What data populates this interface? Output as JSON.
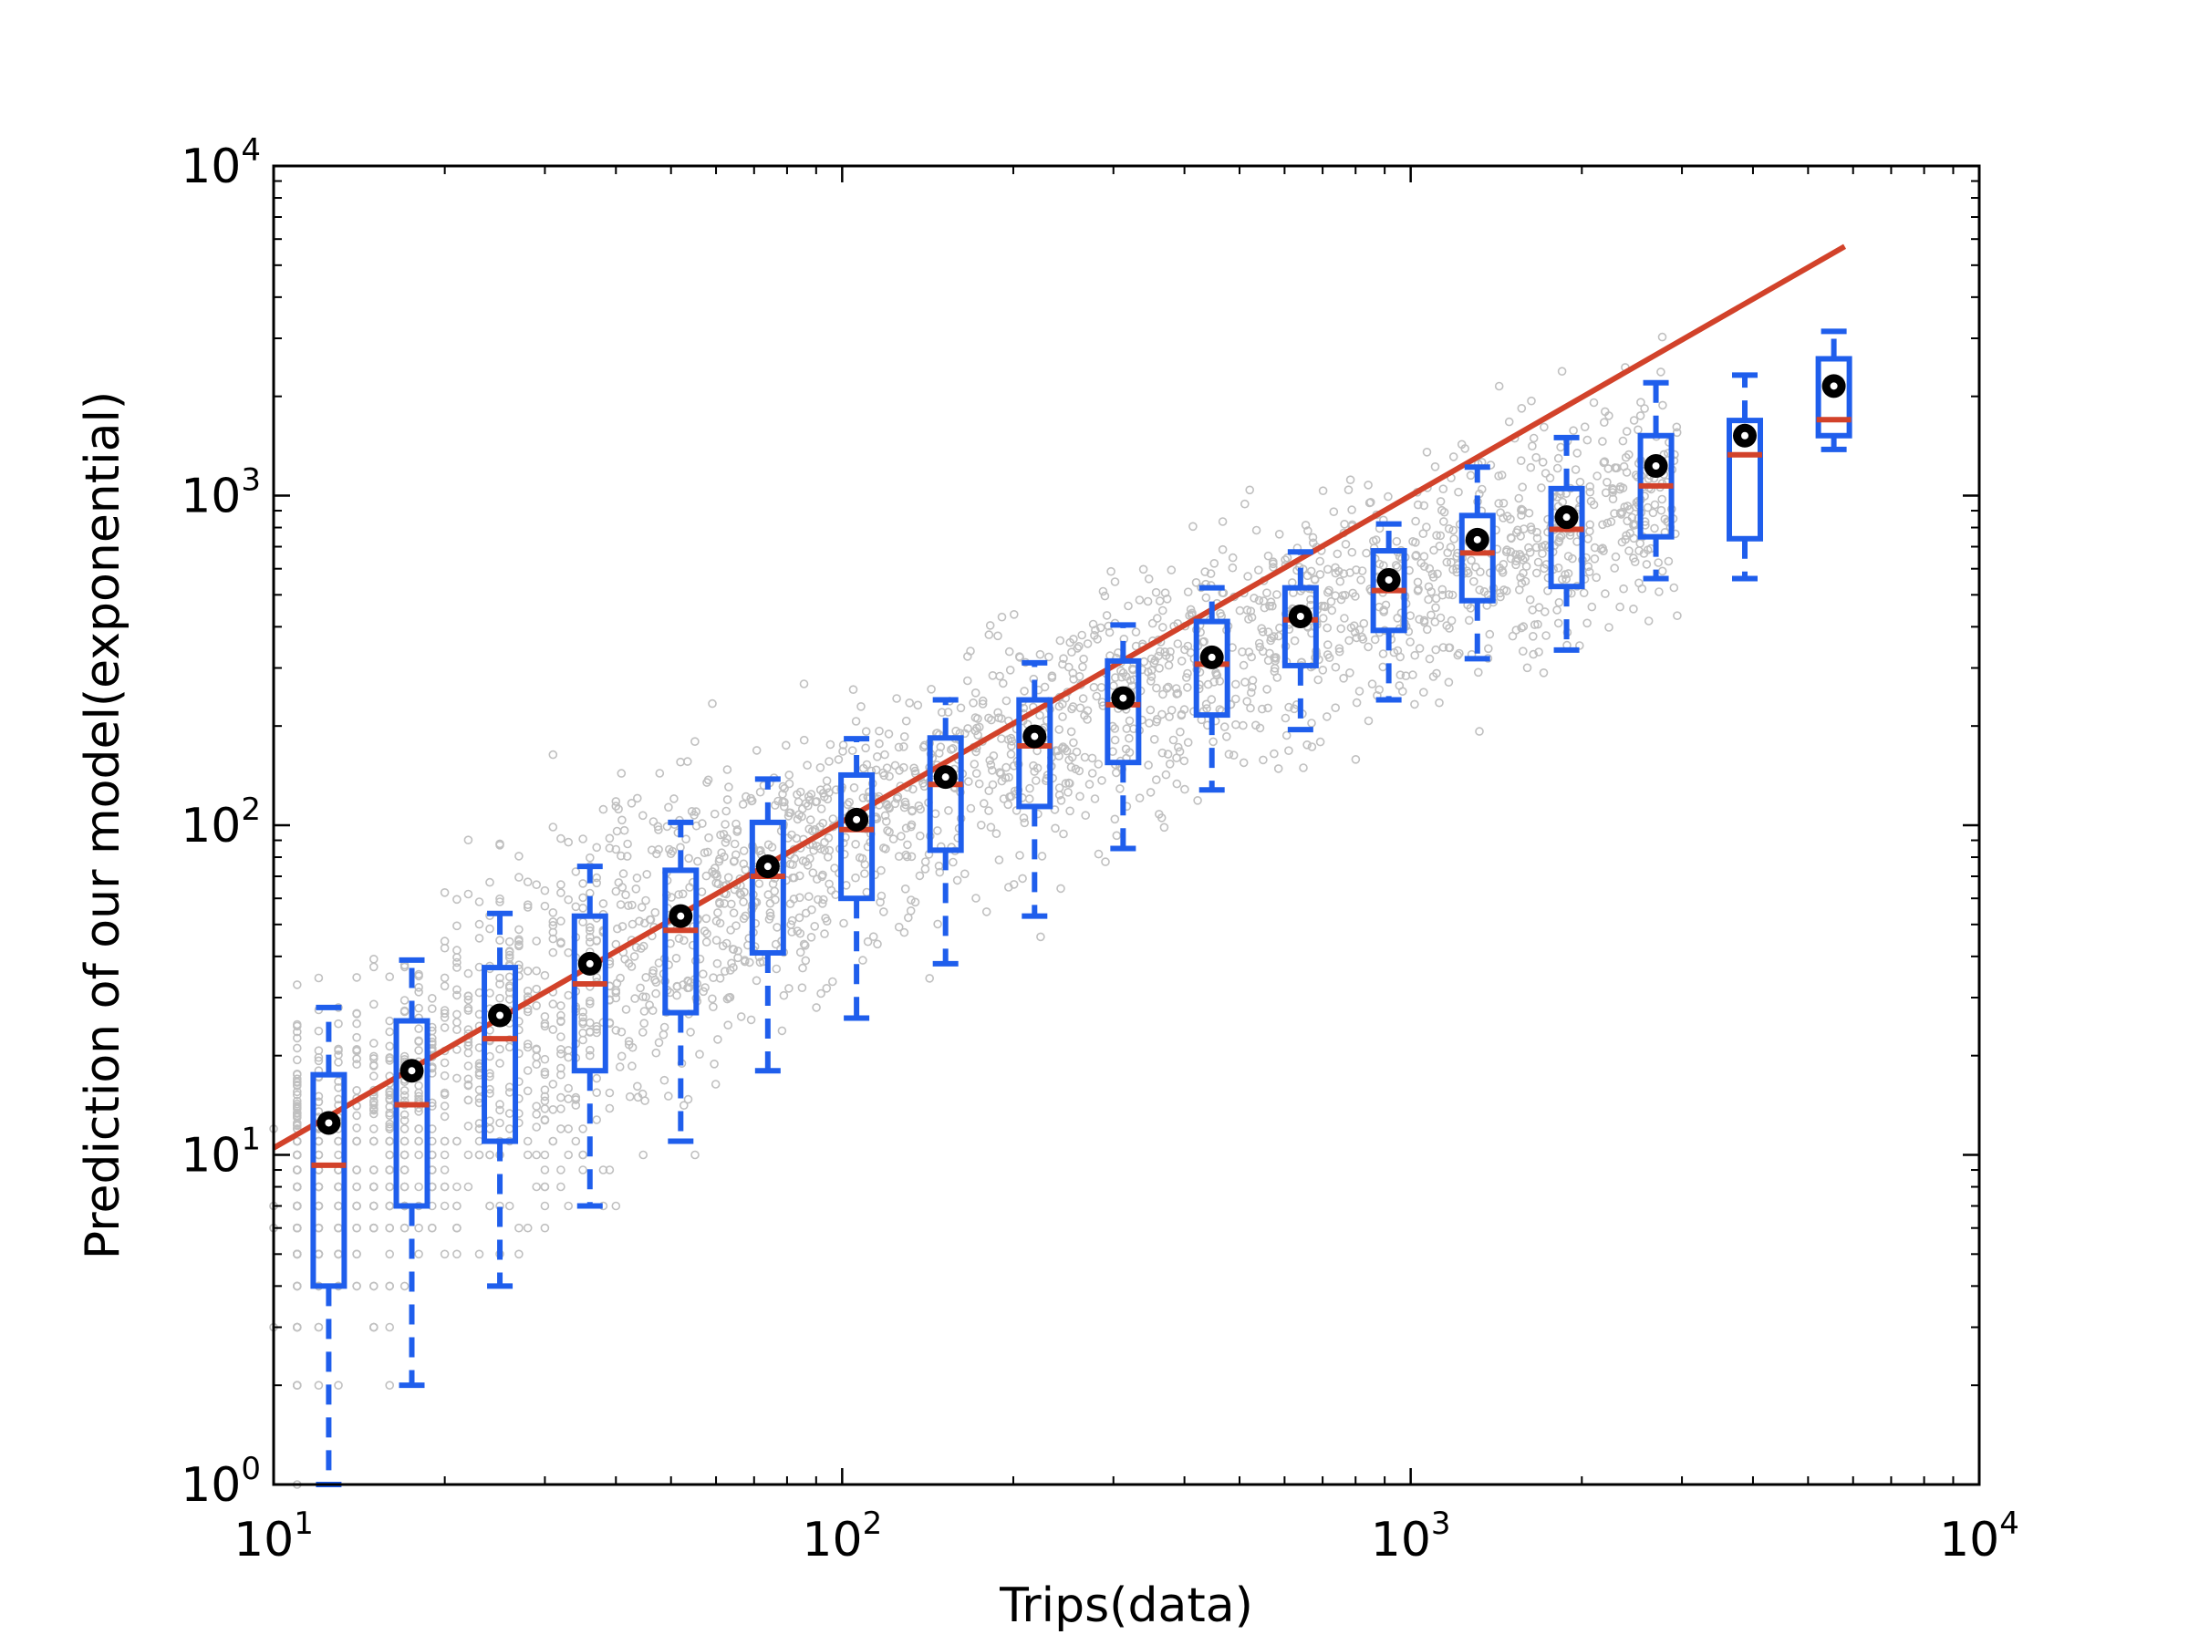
{
  "chart_data": {
    "type": "scatter",
    "title": "",
    "xlabel": "Trips(data)",
    "ylabel": "Prediction of our model(exponential)",
    "xscale": "log",
    "yscale": "log",
    "xlim": [
      10,
      10000
    ],
    "ylim": [
      1,
      10000
    ],
    "grid": false,
    "legend": "none",
    "x_ticks": [
      {
        "value": 10,
        "base": "10",
        "exp": "1"
      },
      {
        "value": 100,
        "base": "10",
        "exp": "2"
      },
      {
        "value": 1000,
        "base": "10",
        "exp": "3"
      },
      {
        "value": 10000,
        "base": "10",
        "exp": "4"
      }
    ],
    "y_ticks": [
      {
        "value": 1,
        "base": "10",
        "exp": "0"
      },
      {
        "value": 10,
        "base": "10",
        "exp": "1"
      },
      {
        "value": 100,
        "base": "10",
        "exp": "2"
      },
      {
        "value": 1000,
        "base": "10",
        "exp": "3"
      },
      {
        "value": 10000,
        "base": "10",
        "exp": "4"
      }
    ],
    "colors": {
      "scatter": "#c0c0c0",
      "box": "#1f5eec",
      "median": "#d2422a",
      "fit_line": "#d2422a",
      "mean_marker": "#000000"
    },
    "fit_line": {
      "x": [
        10,
        5800
      ],
      "y": [
        10.5,
        5700
      ]
    },
    "boxes": [
      {
        "x": 12.5,
        "q1": 4.0,
        "median": 9.3,
        "q3": 17.5,
        "whisker_low": 1.0,
        "whisker_high": 28,
        "mean": 12.5
      },
      {
        "x": 17.5,
        "q1": 7.0,
        "median": 14.2,
        "q3": 25.5,
        "whisker_low": 2.0,
        "whisker_high": 39,
        "mean": 18.0
      },
      {
        "x": 25.0,
        "q1": 11.0,
        "median": 22.5,
        "q3": 37,
        "whisker_low": 4.0,
        "whisker_high": 54,
        "mean": 26.5
      },
      {
        "x": 36.0,
        "q1": 18.0,
        "median": 33,
        "q3": 53,
        "whisker_low": 7.0,
        "whisker_high": 75,
        "mean": 38
      },
      {
        "x": 52.0,
        "q1": 27,
        "median": 48,
        "q3": 73,
        "whisker_low": 11.0,
        "whisker_high": 102,
        "mean": 53
      },
      {
        "x": 74.0,
        "q1": 41,
        "median": 70,
        "q3": 102,
        "whisker_low": 18.0,
        "whisker_high": 138,
        "mean": 75
      },
      {
        "x": 106.0,
        "q1": 60,
        "median": 97,
        "q3": 142,
        "whisker_low": 26,
        "whisker_high": 183,
        "mean": 104
      },
      {
        "x": 152.0,
        "q1": 84,
        "median": 133,
        "q3": 184,
        "whisker_low": 38,
        "whisker_high": 240,
        "mean": 140
      },
      {
        "x": 218.0,
        "q1": 114,
        "median": 174,
        "q3": 240,
        "whisker_low": 53,
        "whisker_high": 311,
        "mean": 186
      },
      {
        "x": 312.0,
        "q1": 155,
        "median": 232,
        "q3": 315,
        "whisker_low": 85,
        "whisker_high": 405,
        "mean": 243
      },
      {
        "x": 447.0,
        "q1": 216,
        "median": 308,
        "q3": 415,
        "whisker_low": 128,
        "whisker_high": 525,
        "mean": 323
      },
      {
        "x": 640.0,
        "q1": 305,
        "median": 420,
        "q3": 525,
        "whisker_low": 195,
        "whisker_high": 675,
        "mean": 430
      },
      {
        "x": 915.0,
        "q1": 390,
        "median": 515,
        "q3": 680,
        "whisker_low": 240,
        "whisker_high": 820,
        "mean": 555
      },
      {
        "x": 1310.0,
        "q1": 480,
        "median": 670,
        "q3": 870,
        "whisker_low": 320,
        "whisker_high": 1220,
        "mean": 735
      },
      {
        "x": 1880.0,
        "q1": 530,
        "median": 790,
        "q3": 1050,
        "whisker_low": 340,
        "whisker_high": 1500,
        "mean": 860
      },
      {
        "x": 2700.0,
        "q1": 750,
        "median": 1070,
        "q3": 1520,
        "whisker_low": 560,
        "whisker_high": 2200,
        "mean": 1230
      },
      {
        "x": 3870.0,
        "q1": 740,
        "median": 1330,
        "q3": 1690,
        "whisker_low": 560,
        "whisker_high": 2320,
        "mean": 1520
      },
      {
        "x": 5550.0,
        "q1": 1520,
        "median": 1700,
        "q3": 2600,
        "whisker_low": 1380,
        "whisker_high": 3150,
        "mean": 2150
      }
    ]
  }
}
